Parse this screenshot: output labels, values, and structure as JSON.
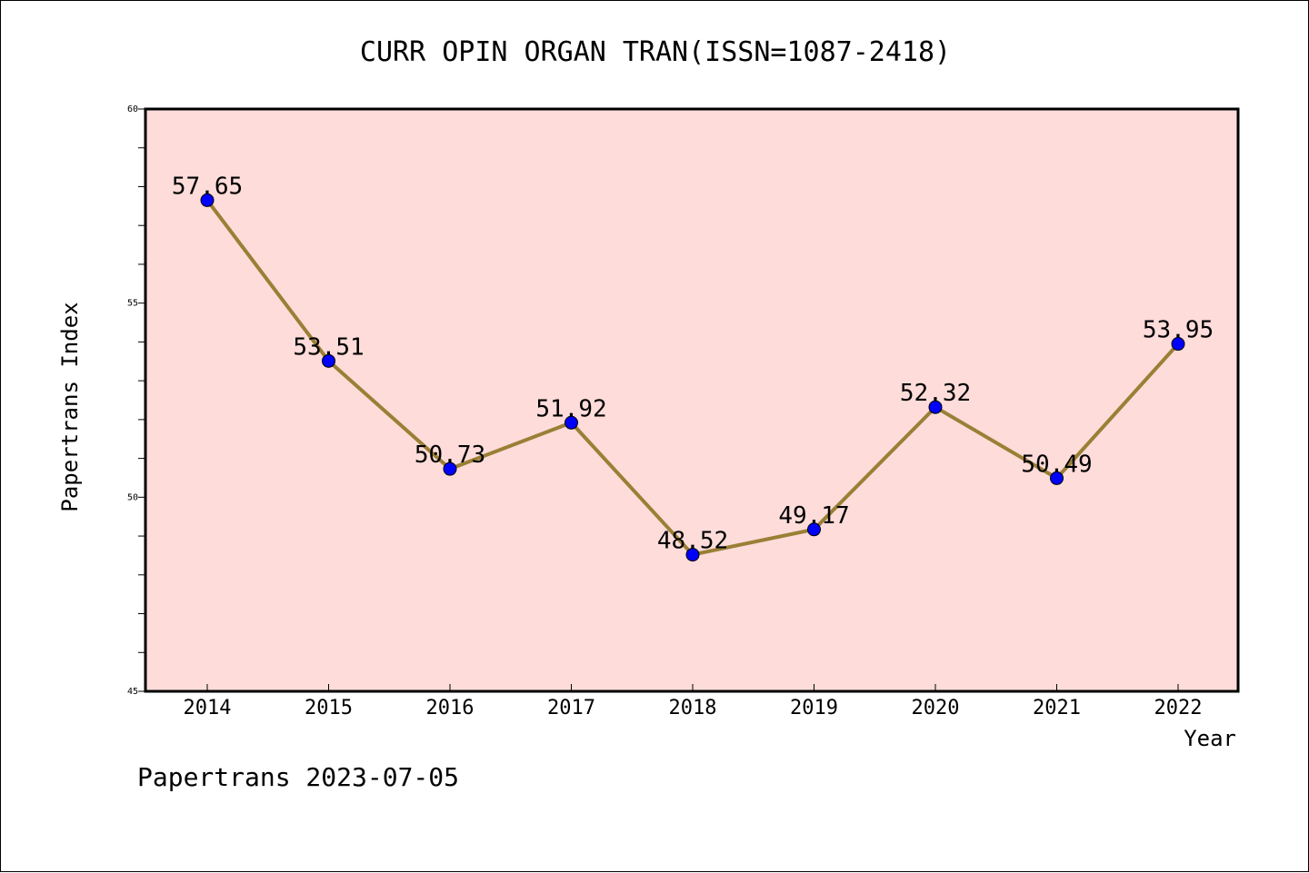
{
  "chart_data": {
    "type": "line",
    "title": "CURR OPIN ORGAN TRAN(ISSN=1087-2418)",
    "xlabel": "Year",
    "ylabel": "Papertrans Index",
    "categories": [
      "2014",
      "2015",
      "2016",
      "2017",
      "2018",
      "2019",
      "2020",
      "2021",
      "2022"
    ],
    "values": [
      57.65,
      53.51,
      50.73,
      51.92,
      48.52,
      49.17,
      52.32,
      50.49,
      53.95
    ],
    "data_labels": [
      "57.65",
      "53.51",
      "50.73",
      "51.92",
      "48.52",
      "49.17",
      "52.32",
      "50.49",
      "53.95"
    ],
    "ylim": [
      45,
      60
    ],
    "yticks": [
      "45",
      "50",
      "55",
      "60"
    ],
    "grid": false,
    "plot_background": "#fddcda",
    "line_color": "#9a7f35",
    "marker_color": "#0000ff"
  },
  "footer": {
    "text": "Papertrans 2023-07-05"
  }
}
